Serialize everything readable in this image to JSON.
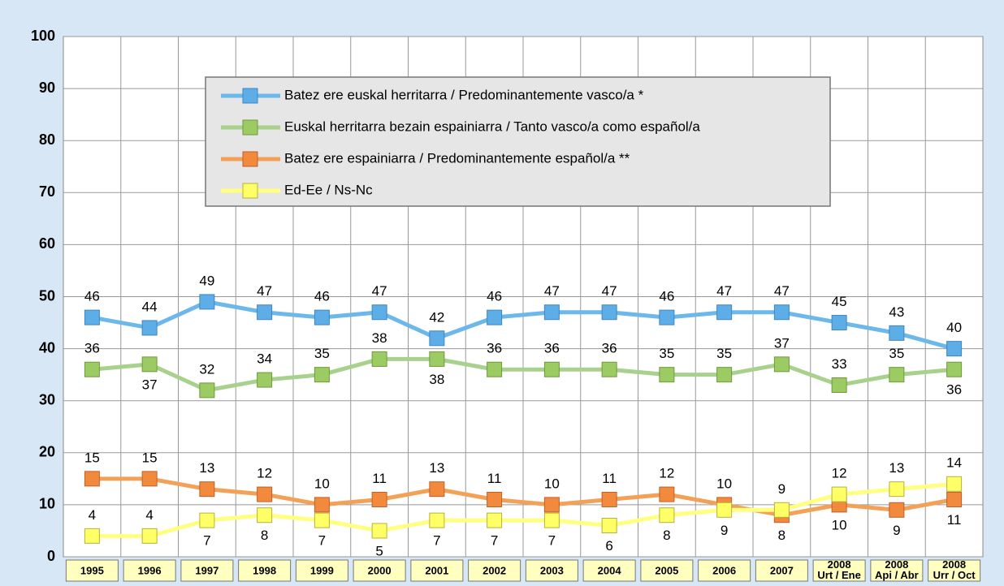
{
  "chart_data": {
    "type": "line",
    "categories": [
      "1995",
      "1996",
      "1997",
      "1998",
      "1999",
      "2000",
      "2001",
      "2002",
      "2003",
      "2004",
      "2005",
      "2006",
      "2007",
      "2008 Urt / Ene",
      "2008 Api / Abr",
      "2008 Urr / Oct"
    ],
    "series": [
      {
        "name": "Batez ere euskal herritarra / Predominantemente vasco/a *",
        "color": "#6cb8ea",
        "values": [
          46,
          44,
          49,
          47,
          46,
          47,
          42,
          46,
          47,
          47,
          46,
          47,
          47,
          45,
          43,
          40
        ]
      },
      {
        "name": "Euskal herritarra bezain espainiarra / Tanto vasco/a como español/a",
        "color": "#a9d18e",
        "values": [
          36,
          37,
          32,
          34,
          35,
          38,
          38,
          36,
          36,
          36,
          35,
          35,
          37,
          33,
          35,
          36
        ]
      },
      {
        "name": "Batez ere espainiarra / Predominantemente español/a **",
        "color": "#f3a157",
        "values": [
          15,
          15,
          13,
          12,
          10,
          11,
          13,
          11,
          10,
          11,
          12,
          10,
          8,
          10,
          9,
          11
        ]
      },
      {
        "name": "Ed-Ee / Ns-Nc",
        "color": "#ffff80",
        "values": [
          4,
          4,
          7,
          8,
          7,
          5,
          7,
          7,
          7,
          6,
          8,
          9,
          9,
          12,
          13,
          14
        ]
      }
    ],
    "ylim": [
      0,
      100
    ],
    "yticks": [
      0,
      10,
      20,
      30,
      40,
      50,
      60,
      70,
      80,
      90,
      100
    ],
    "grid": true
  }
}
